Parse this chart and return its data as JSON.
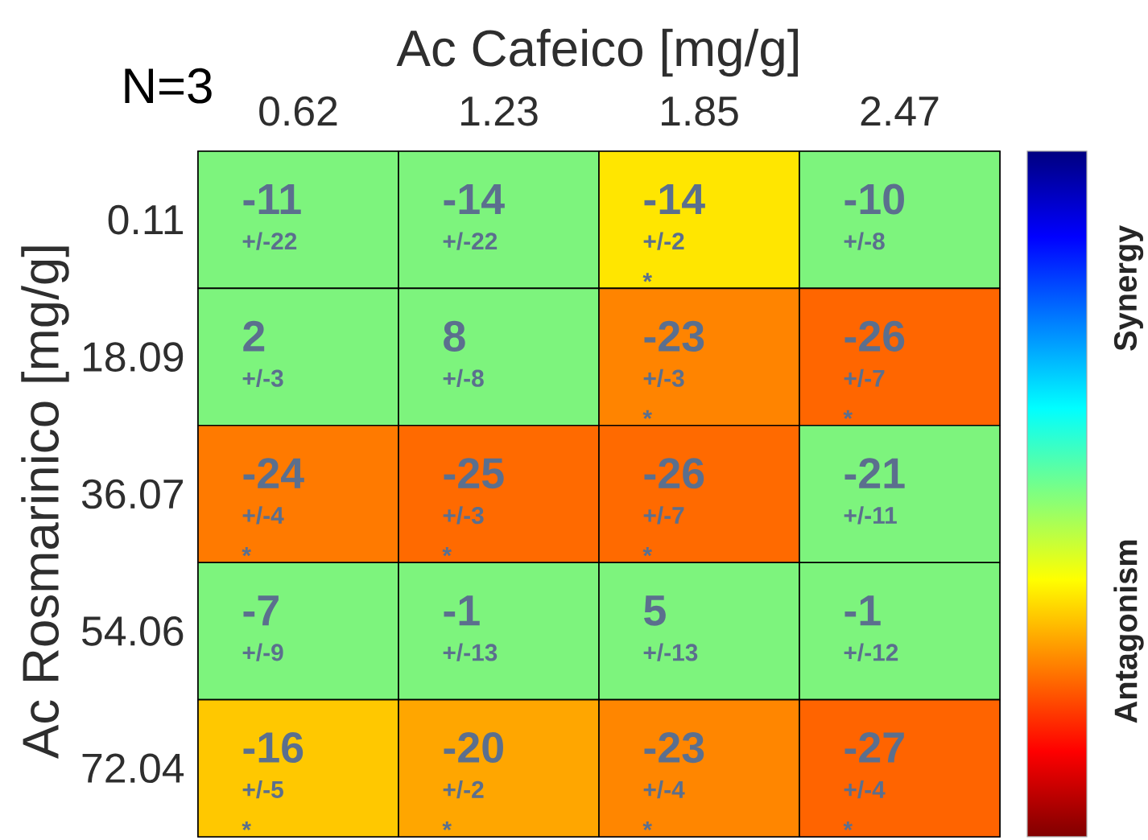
{
  "chart_data": {
    "type": "heatmap",
    "xlabel": "Ac Cafeico [mg/g]",
    "ylabel": "Ac Rosmarinico [mg/g]",
    "categories": [
      "0.62",
      "1.23",
      "1.85",
      "2.47"
    ],
    "y_categories": [
      "0.11",
      "18.09",
      "36.07",
      "54.06",
      "72.04"
    ],
    "cells": [
      [
        -11,
        -14,
        -14,
        -10
      ],
      [
        2,
        8,
        -23,
        -26
      ],
      [
        -24,
        -25,
        -26,
        -21
      ],
      [
        -7,
        -1,
        5,
        -1
      ],
      [
        -16,
        -20,
        -23,
        -27
      ]
    ],
    "data_labels": true,
    "colors": [
      [
        "#7df47d",
        "#7df47d",
        "#ffe600",
        "#7df47d"
      ],
      [
        "#7df47d",
        "#7df47d",
        "#ff8400",
        "#ff6600"
      ],
      [
        "#ff7a00",
        "#ff6a00",
        "#ff6a00",
        "#7df47d"
      ],
      [
        "#7df47d",
        "#7df47d",
        "#7df47d",
        "#7df47d"
      ],
      [
        "#ffc800",
        "#ffa600",
        "#ff8600",
        "#ff6400"
      ]
    ],
    "annotations": [
      "N=3",
      "Synergy",
      "Antagonism",
      "+/-22",
      "+/-22",
      "+/-2 *",
      "+/-8",
      "+/-3",
      "+/-8",
      "+/-3 *",
      "+/-7 *",
      "+/-4 *",
      "+/-3 *",
      "+/-7 *",
      "+/-11",
      "+/-9",
      "+/-13",
      "+/-13",
      "+/-12",
      "+/-5 *",
      "+/-2 *",
      "+/-4 *",
      "+/-4 *"
    ]
  }
}
